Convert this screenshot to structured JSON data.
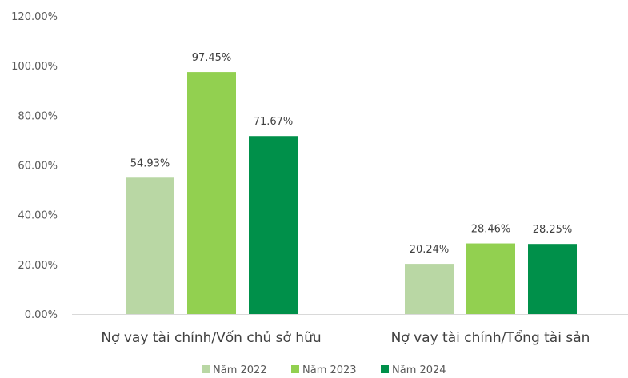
{
  "chart_data": {
    "type": "bar",
    "title": "",
    "xlabel": "",
    "ylabel": "",
    "ylim": [
      0,
      120
    ],
    "yticks": [
      "0.00%",
      "20.00%",
      "40.00%",
      "60.00%",
      "80.00%",
      "100.00%",
      "120.00%"
    ],
    "grid": false,
    "legend_position": "bottom",
    "categories": [
      "Nợ vay tài chính/Vốn chủ sở hữu",
      "Nợ vay tài chính/Tổng tài sản"
    ],
    "series": [
      {
        "name": "Năm 2022",
        "color": "#b9d7a4",
        "values": [
          54.93,
          20.24
        ],
        "labels": [
          "54.93%",
          "20.24%"
        ]
      },
      {
        "name": "Năm 2023",
        "color": "#92d050",
        "values": [
          97.45,
          28.46
        ],
        "labels": [
          "97.45%",
          "28.46%"
        ]
      },
      {
        "name": "Năm 2024",
        "color": "#00904a",
        "values": [
          71.67,
          28.25
        ],
        "labels": [
          "71.67%",
          "28.25%"
        ]
      }
    ]
  }
}
